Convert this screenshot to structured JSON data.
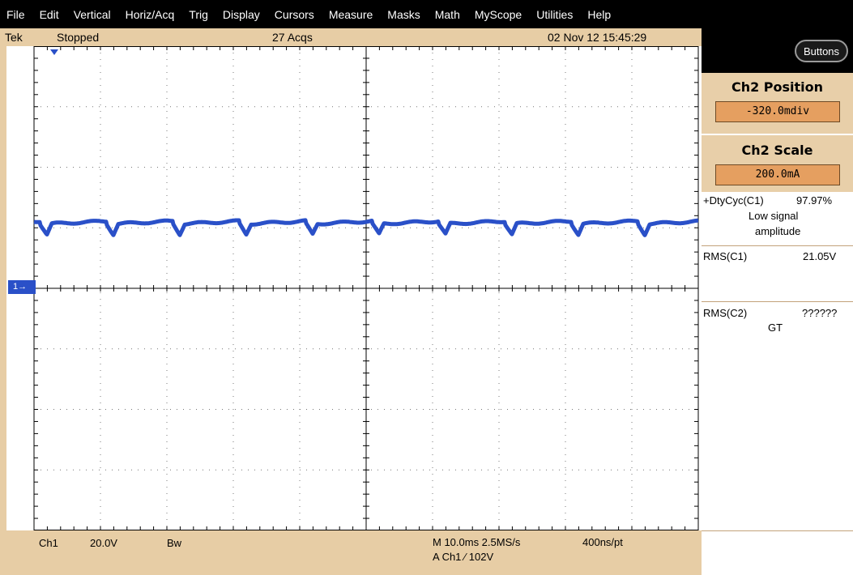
{
  "menu": [
    "File",
    "Edit",
    "Vertical",
    "Horiz/Acq",
    "Trig",
    "Display",
    "Cursors",
    "Measure",
    "Masks",
    "Math",
    "MyScope",
    "Utilities",
    "Help"
  ],
  "status": {
    "brand": "Tek",
    "run_state": "Stopped",
    "acquisitions": "27 Acqs",
    "datetime": "02 Nov 12 15:45:29"
  },
  "buttons_label": "Buttons",
  "ch2_position": {
    "title": "Ch2 Position",
    "value": "-320.0mdiv"
  },
  "ch2_scale": {
    "title": "Ch2 Scale",
    "value": "200.0mA"
  },
  "measurements": {
    "duty": {
      "label": "+DtyCyc(C1)",
      "value": "97.97%",
      "note1": "Low signal",
      "note2": "amplitude"
    },
    "rms_c1": {
      "label": "RMS(C1)",
      "value": "21.05V"
    },
    "rms_c2": {
      "label": "RMS(C2)",
      "value": "??????",
      "note": "GT"
    }
  },
  "ch1_marker": "1",
  "bottom": {
    "channel": "Ch1",
    "volts": "20.0V",
    "bw": "Bw",
    "timebase": "M 10.0ms 2.5MS/s",
    "resolution": "400ns/pt",
    "trigger": "A  Ch1  ∕  102V"
  },
  "colors": {
    "trace": "#2a50c8",
    "panel": "#e8cfa9",
    "field": "#e59f60",
    "menubar": "#000000"
  }
}
